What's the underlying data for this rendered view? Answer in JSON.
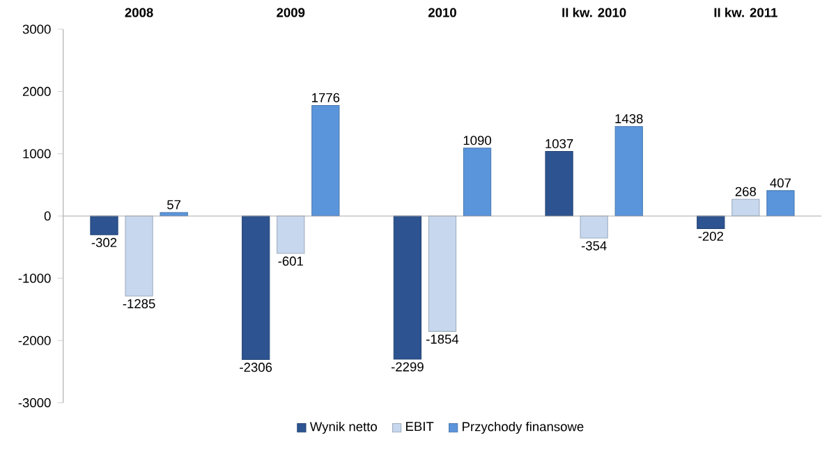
{
  "chart_data": {
    "type": "bar",
    "categories": [
      "2008",
      "2009",
      "2010",
      "II kw. 2010",
      "II kw. 2011"
    ],
    "series": [
      {
        "name": "Wynik netto",
        "color": "#2d5491",
        "values": [
          -302,
          -2306,
          -2299,
          1037,
          -202
        ]
      },
      {
        "name": "EBIT",
        "color": "#c6d7ee",
        "values": [
          -1285,
          -601,
          -1854,
          -354,
          268
        ]
      },
      {
        "name": "Przychody finansowe",
        "color": "#5a95dc",
        "values": [
          57,
          1776,
          1090,
          1438,
          407
        ]
      }
    ],
    "ylim": [
      -3000,
      3000
    ],
    "yticks": [
      -3000,
      -2000,
      -1000,
      0,
      1000,
      2000,
      3000
    ],
    "data_labels": true,
    "legend": "bottom"
  }
}
